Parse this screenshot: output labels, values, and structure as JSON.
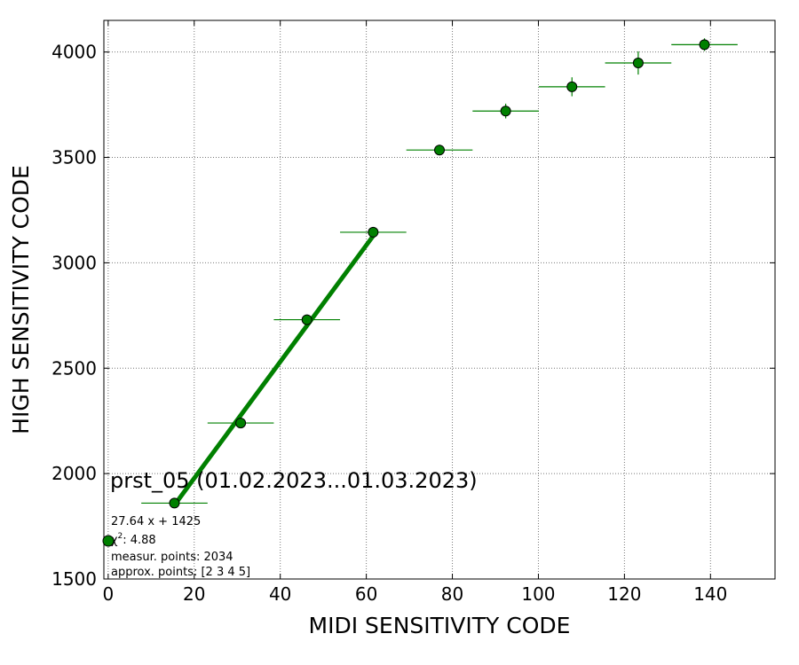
{
  "chart_data": {
    "type": "scatter",
    "title": "prst_05 (01.02.2023...01.03.2023)",
    "xlabel": "MIDI SENSITIVITY CODE",
    "ylabel": "HIGH SENSITIVITY CODE",
    "xlim": [
      -1,
      155
    ],
    "ylim": [
      1500,
      4150
    ],
    "x_ticks": [
      0,
      20,
      40,
      60,
      80,
      100,
      120,
      140
    ],
    "y_ticks": [
      1500,
      2000,
      2500,
      3000,
      3500,
      4000
    ],
    "grid": true,
    "grid_style": "dotted",
    "series": [
      {
        "color": "#008000",
        "points": [
          {
            "x": 15.4,
            "y": 1860,
            "xerr": 7.7,
            "yerr": 15
          },
          {
            "x": 30.8,
            "y": 2240,
            "xerr": 7.7,
            "yerr": 15
          },
          {
            "x": 46.2,
            "y": 2730,
            "xerr": 7.7,
            "yerr": 15
          },
          {
            "x": 61.6,
            "y": 3145,
            "xerr": 7.7,
            "yerr": 20
          },
          {
            "x": 77.0,
            "y": 3535,
            "xerr": 7.7,
            "yerr": 25
          },
          {
            "x": 92.4,
            "y": 3720,
            "xerr": 7.7,
            "yerr": 35
          },
          {
            "x": 107.8,
            "y": 3835,
            "xerr": 7.7,
            "yerr": 45
          },
          {
            "x": 123.2,
            "y": 3948,
            "xerr": 7.7,
            "yerr": 55
          },
          {
            "x": 138.6,
            "y": 4035,
            "xerr": 7.7,
            "yerr": 30
          }
        ]
      }
    ],
    "fit": {
      "slope": 27.64,
      "intercept": 1425,
      "x_range": [
        15.4,
        61.6
      ],
      "color": "#008000"
    },
    "annotations": {
      "equation": "27.64 x + 1425",
      "chi2_symbol": "χ",
      "chi2_power": "2",
      "chi2_value": ": 4.88",
      "measur_points": "measur. points: 2034",
      "approx_points": "approx. points: [2 3 4 5]"
    },
    "legend_marker": {
      "color": "#008000"
    }
  }
}
